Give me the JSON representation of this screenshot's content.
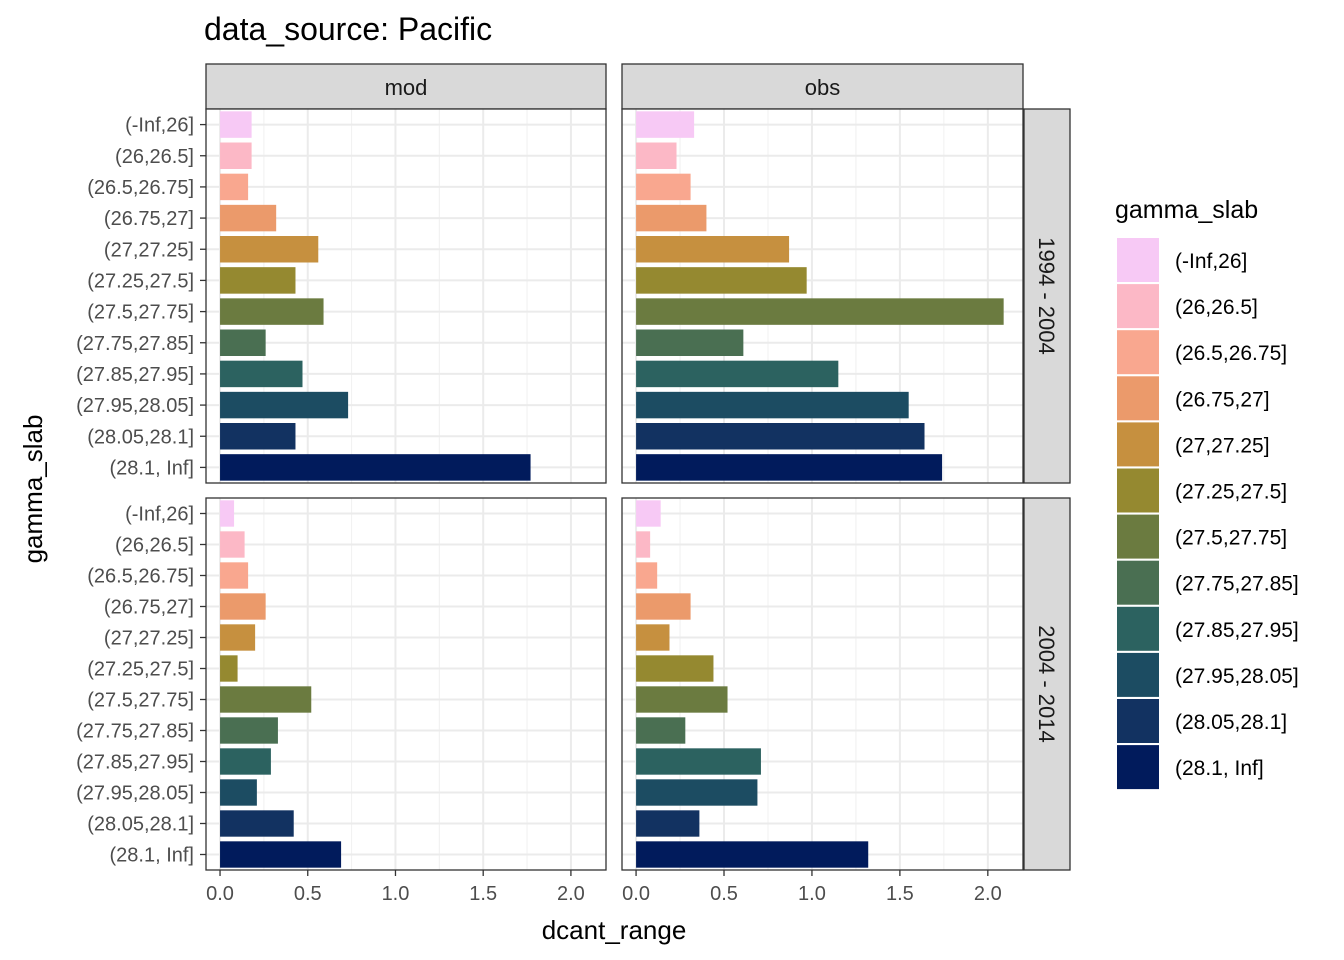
{
  "chart_data": {
    "type": "bar",
    "orientation": "horizontal",
    "title": "data_source: Pacific",
    "xlabel": "dcant_range",
    "ylabel": "gamma_slab",
    "xlim": [
      -0.08,
      2.2
    ],
    "x_ticks": [
      "0.0",
      "0.5",
      "1.0",
      "1.5",
      "2.0"
    ],
    "x_tick_values": [
      0,
      0.5,
      1.0,
      1.5,
      2.0
    ],
    "grid": true,
    "legend_position": "right",
    "legend_title": "gamma_slab",
    "categories": [
      "(-Inf,26]",
      "(26,26.5]",
      "(26.5,26.75]",
      "(26.75,27]",
      "(27,27.25]",
      "(27.25,27.5]",
      "(27.5,27.75]",
      "(27.75,27.85]",
      "(27.85,27.95]",
      "(27.95,28.05]",
      "(28.05,28.1]",
      "(28.1, Inf]"
    ],
    "colors": [
      "#F7C9F5",
      "#FCB8C6",
      "#F9A78F",
      "#EB9A6B",
      "#C6903F",
      "#958930",
      "#6B7B40",
      "#4A6F52",
      "#2C6260",
      "#1C4C62",
      "#123261",
      "#011B5C"
    ],
    "col_facets": [
      "mod",
      "obs"
    ],
    "row_facets": [
      "1994 - 2004",
      "2004 - 2014"
    ],
    "panels": [
      {
        "row": "1994 - 2004",
        "col": "mod",
        "values": [
          0.18,
          0.18,
          0.16,
          0.32,
          0.56,
          0.43,
          0.59,
          0.26,
          0.47,
          0.73,
          0.43,
          1.77
        ]
      },
      {
        "row": "1994 - 2004",
        "col": "obs",
        "values": [
          0.33,
          0.23,
          0.31,
          0.4,
          0.87,
          0.97,
          2.09,
          0.61,
          1.15,
          1.55,
          1.64,
          1.74
        ]
      },
      {
        "row": "2004 - 2014",
        "col": "mod",
        "values": [
          0.08,
          0.14,
          0.16,
          0.26,
          0.2,
          0.1,
          0.52,
          0.33,
          0.29,
          0.21,
          0.42,
          0.69
        ]
      },
      {
        "row": "2004 - 2014",
        "col": "obs",
        "values": [
          0.14,
          0.08,
          0.12,
          0.31,
          0.19,
          0.44,
          0.52,
          0.28,
          0.71,
          0.69,
          0.36,
          1.32
        ]
      }
    ]
  }
}
